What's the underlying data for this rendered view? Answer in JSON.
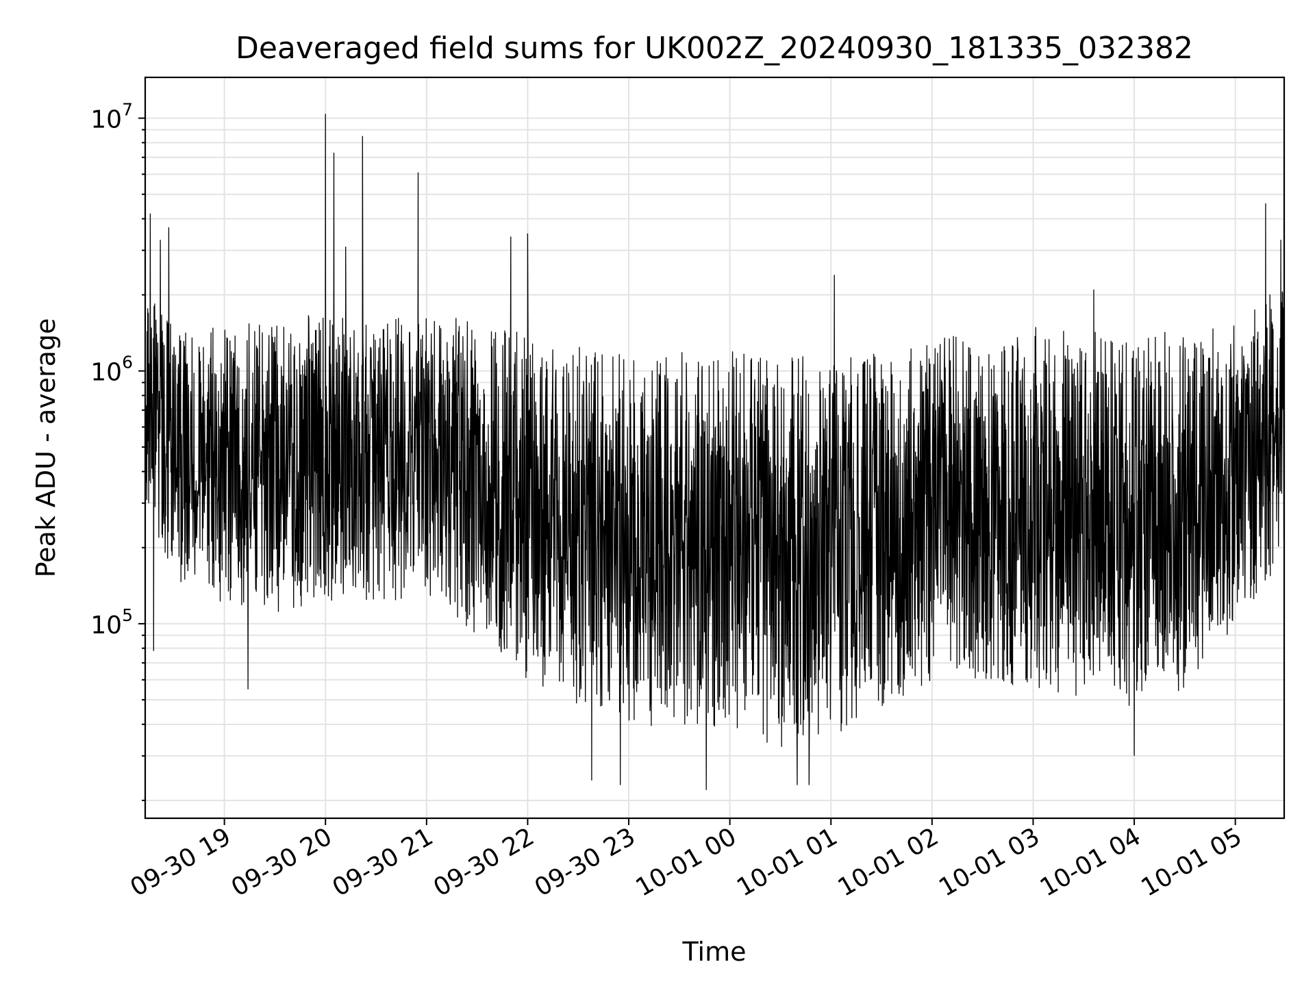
{
  "chart_data": {
    "type": "line",
    "title": "Deaveraged field sums for UK002Z_20240930_181335_032382",
    "xlabel": "Time",
    "ylabel": "Peak ADU - average",
    "yscale": "log",
    "ylim": [
      17000,
      14500000
    ],
    "xlim": [
      "2024-09-30 18:13",
      "2024-10-01 05:29"
    ],
    "grid": true,
    "y_ticks": [
      {
        "base": "10",
        "exp": "5",
        "value": 100000
      },
      {
        "base": "10",
        "exp": "6",
        "value": 1000000
      },
      {
        "base": "10",
        "exp": "7",
        "value": 10000000
      }
    ],
    "x_ticks": [
      {
        "label": "09-30 19",
        "time": "2024-09-30 19:00"
      },
      {
        "label": "09-30 20",
        "time": "2024-09-30 20:00"
      },
      {
        "label": "09-30 21",
        "time": "2024-09-30 21:00"
      },
      {
        "label": "09-30 22",
        "time": "2024-09-30 22:00"
      },
      {
        "label": "09-30 23",
        "time": "2024-09-30 23:00"
      },
      {
        "label": "10-01 00",
        "time": "2024-10-01 00:00"
      },
      {
        "label": "10-01 01",
        "time": "2024-10-01 01:00"
      },
      {
        "label": "10-01 02",
        "time": "2024-10-01 02:00"
      },
      {
        "label": "10-01 03",
        "time": "2024-10-01 03:00"
      },
      {
        "label": "10-01 04",
        "time": "2024-10-01 04:00"
      },
      {
        "label": "10-01 05",
        "time": "2024-10-01 05:00"
      }
    ],
    "envelope": {
      "time": [
        "2024-09-30 18:13",
        "2024-09-30 18:30",
        "2024-09-30 19:00",
        "2024-09-30 19:30",
        "2024-09-30 20:00",
        "2024-09-30 20:30",
        "2024-09-30 21:00",
        "2024-09-30 21:30",
        "2024-09-30 22:00",
        "2024-09-30 22:30",
        "2024-09-30 23:00",
        "2024-09-30 23:30",
        "2024-10-01 00:00",
        "2024-10-01 00:30",
        "2024-10-01 01:00",
        "2024-10-01 01:30",
        "2024-10-01 02:00",
        "2024-10-01 02:30",
        "2024-10-01 03:00",
        "2024-10-01 03:30",
        "2024-10-01 04:00",
        "2024-10-01 04:30",
        "2024-10-01 05:00",
        "2024-10-01 05:29"
      ],
      "upper": [
        2000000,
        1600000,
        1500000,
        1600000,
        1700000,
        1600000,
        1650000,
        1600000,
        1500000,
        1250000,
        1200000,
        1200000,
        1200000,
        1150000,
        1200000,
        1300000,
        1400000,
        1450000,
        1500000,
        1450000,
        1400000,
        1450000,
        1600000,
        2300000
      ],
      "lower": [
        300000,
        150000,
        120000,
        110000,
        120000,
        120000,
        130000,
        90000,
        60000,
        45000,
        40000,
        38000,
        38000,
        32000,
        35000,
        45000,
        55000,
        60000,
        55000,
        50000,
        45000,
        50000,
        100000,
        180000
      ]
    },
    "peaks": [
      {
        "time": "2024-09-30 18:16",
        "value": 4200000
      },
      {
        "time": "2024-09-30 18:22",
        "value": 3300000
      },
      {
        "time": "2024-09-30 18:27",
        "value": 3700000
      },
      {
        "time": "2024-09-30 20:00",
        "value": 10400000
      },
      {
        "time": "2024-09-30 20:05",
        "value": 7300000
      },
      {
        "time": "2024-09-30 20:12",
        "value": 3100000
      },
      {
        "time": "2024-09-30 20:22",
        "value": 8500000
      },
      {
        "time": "2024-09-30 20:55",
        "value": 6100000
      },
      {
        "time": "2024-09-30 21:50",
        "value": 3400000
      },
      {
        "time": "2024-09-30 22:00",
        "value": 3500000
      },
      {
        "time": "2024-10-01 01:02",
        "value": 2400000
      },
      {
        "time": "2024-10-01 03:36",
        "value": 2100000
      },
      {
        "time": "2024-10-01 05:18",
        "value": 4600000
      },
      {
        "time": "2024-10-01 05:27",
        "value": 3300000
      }
    ],
    "troughs": [
      {
        "time": "2024-09-30 18:18",
        "value": 78000
      },
      {
        "time": "2024-09-30 19:14",
        "value": 55000
      },
      {
        "time": "2024-09-30 22:38",
        "value": 24000
      },
      {
        "time": "2024-09-30 22:55",
        "value": 23000
      },
      {
        "time": "2024-09-30 23:46",
        "value": 22000
      },
      {
        "time": "2024-10-01 00:40",
        "value": 23000
      },
      {
        "time": "2024-10-01 00:47",
        "value": 23000
      },
      {
        "time": "2024-10-01 04:00",
        "value": 30000
      }
    ]
  }
}
